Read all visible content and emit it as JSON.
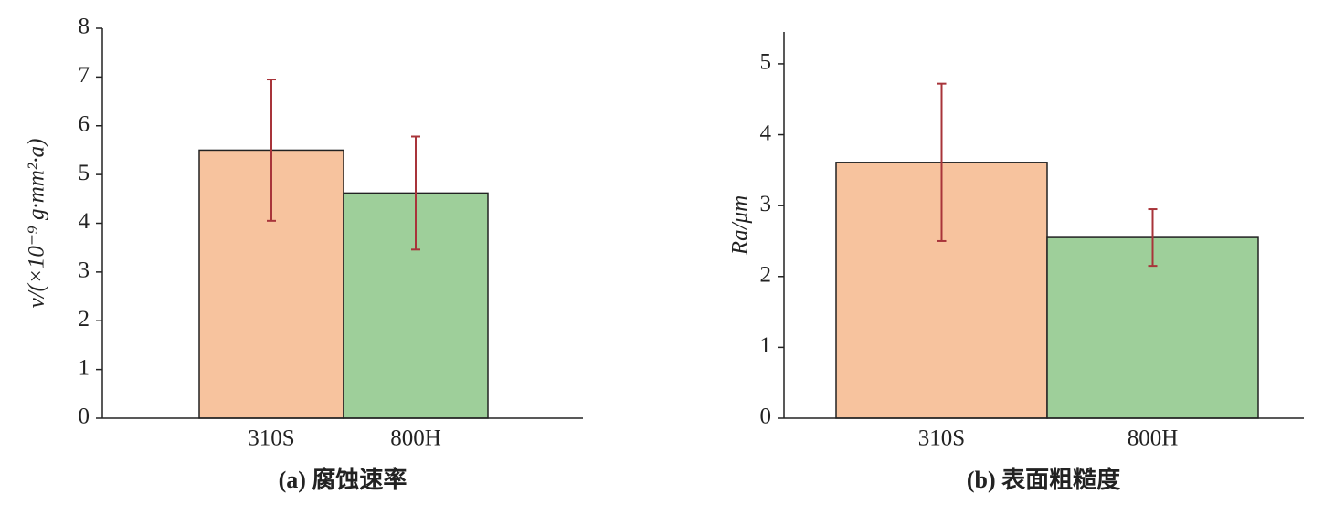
{
  "chart_data": [
    {
      "type": "bar",
      "caption": "(a) 腐蚀速率",
      "ylabel": "v/(×10⁻⁹ g·mm²·a)",
      "categories": [
        "310S",
        "800H"
      ],
      "values": [
        5.5,
        4.62
      ],
      "errors": [
        1.45,
        1.16
      ],
      "colors": [
        "#f7c39e",
        "#9ecf9a"
      ],
      "error_color": "#a8343a",
      "ylim": [
        0,
        8
      ],
      "yticks": [
        0,
        1,
        2,
        3,
        4,
        5,
        6,
        7,
        8
      ]
    },
    {
      "type": "bar",
      "caption": "(b) 表面粗糙度",
      "ylabel": "Ra/μm",
      "categories": [
        "310S",
        "800H"
      ],
      "values": [
        3.61,
        2.55
      ],
      "errors": [
        1.11,
        0.4
      ],
      "colors": [
        "#f7c39e",
        "#9ecf9a"
      ],
      "error_color": "#a8343a",
      "ylim": [
        0,
        5.45
      ],
      "yticks": [
        0,
        1,
        2,
        3,
        4,
        5
      ]
    }
  ]
}
